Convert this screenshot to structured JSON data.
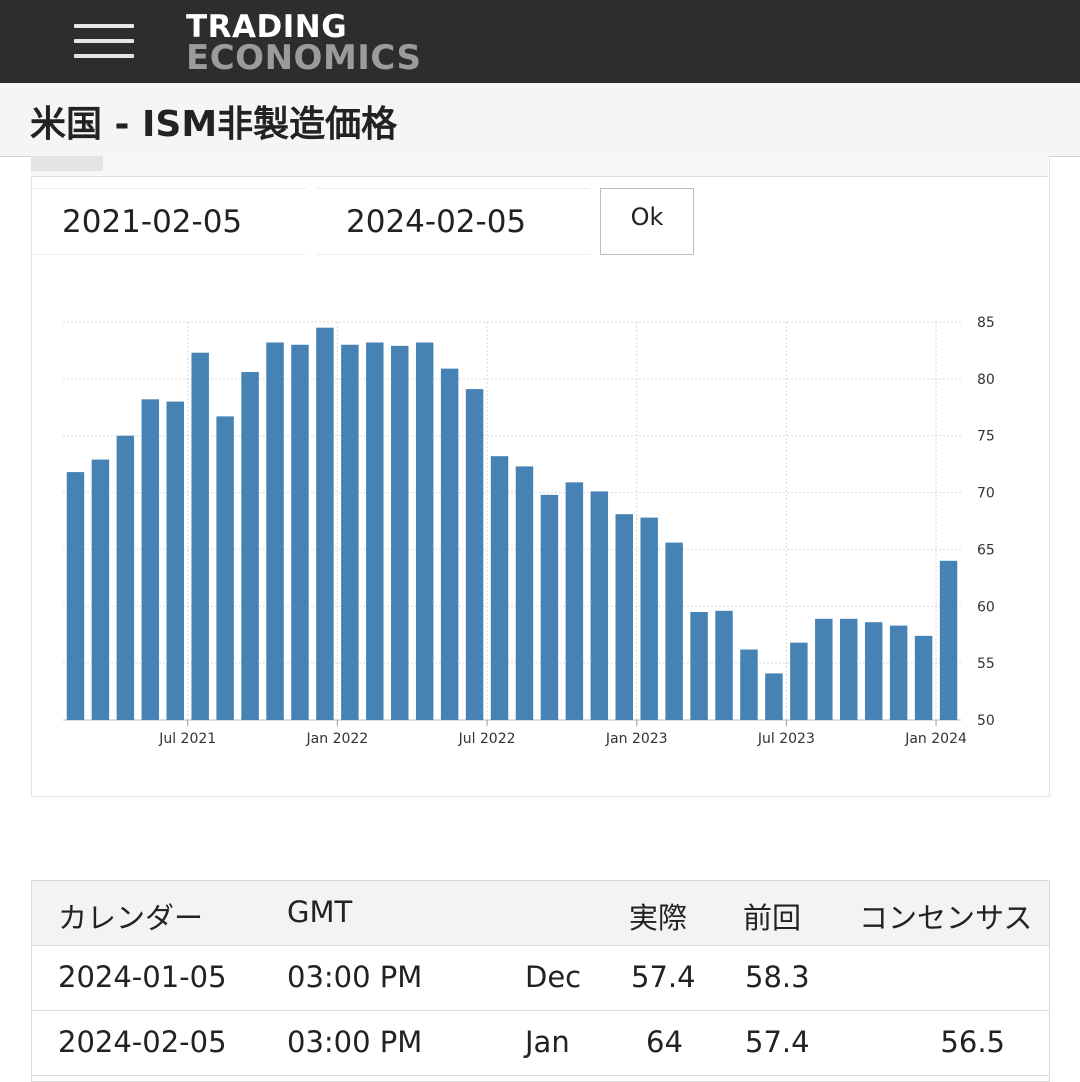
{
  "header": {
    "logo_line1": "TRADING",
    "logo_line2": "ECONOMICS"
  },
  "page_title": "米国 - ISM非製造価格",
  "date_range": {
    "start": "2021-02-05",
    "end": "2024-02-05",
    "ok_label": "Ok"
  },
  "colors": {
    "bar": "#4682b4",
    "topbar": "#2d2d2d"
  },
  "chart_data": {
    "type": "bar",
    "x": [
      "2021-02",
      "2021-03",
      "2021-04",
      "2021-05",
      "2021-06",
      "2021-07",
      "2021-08",
      "2021-09",
      "2021-10",
      "2021-11",
      "2021-12",
      "2022-01",
      "2022-02",
      "2022-03",
      "2022-04",
      "2022-05",
      "2022-06",
      "2022-07",
      "2022-08",
      "2022-09",
      "2022-10",
      "2022-11",
      "2022-12",
      "2023-01",
      "2023-02",
      "2023-03",
      "2023-04",
      "2023-05",
      "2023-06",
      "2023-07",
      "2023-08",
      "2023-09",
      "2023-10",
      "2023-11",
      "2023-12",
      "2024-01"
    ],
    "values": [
      71.8,
      72.9,
      75.0,
      78.2,
      78.0,
      82.3,
      76.7,
      80.6,
      83.2,
      83.0,
      84.5,
      83.0,
      83.2,
      82.9,
      83.2,
      80.9,
      79.1,
      73.2,
      72.3,
      69.8,
      70.9,
      70.1,
      68.1,
      67.8,
      65.6,
      59.5,
      59.6,
      56.2,
      54.1,
      56.8,
      58.9,
      58.9,
      58.6,
      58.3,
      57.4,
      64.0
    ],
    "y_axis_side": "right",
    "ylim": [
      50,
      85
    ],
    "yticks": [
      50,
      55,
      60,
      65,
      70,
      75,
      80,
      85
    ],
    "xticks": [
      {
        "label": "Jul 2021",
        "x": "2021-07"
      },
      {
        "label": "Jan 2022",
        "x": "2022-01"
      },
      {
        "label": "Jul 2022",
        "x": "2022-07"
      },
      {
        "label": "Jan 2023",
        "x": "2023-01"
      },
      {
        "label": "Jul 2023",
        "x": "2023-07"
      },
      {
        "label": "Jan 2024",
        "x": "2024-01"
      }
    ],
    "grid": true,
    "legend": false
  },
  "table": {
    "headers": [
      "カレンダー",
      "GMT",
      "",
      "実際",
      "前回",
      "コンセンサス"
    ],
    "rows": [
      {
        "date": "2024-01-05",
        "time": "03:00 PM",
        "ref": "Dec",
        "actual": "57.4",
        "previous": "58.3",
        "consensus": ""
      },
      {
        "date": "2024-02-05",
        "time": "03:00 PM",
        "ref": "Jan",
        "actual": "64",
        "previous": "57.4",
        "consensus": "56.5"
      }
    ]
  }
}
